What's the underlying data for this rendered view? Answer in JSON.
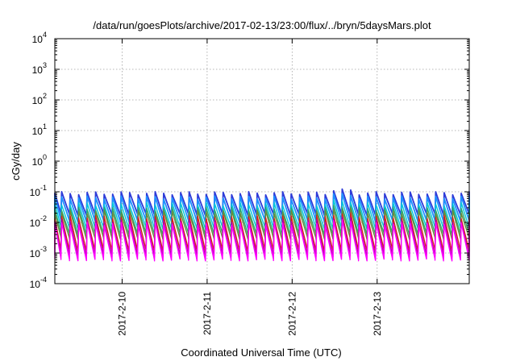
{
  "chart_data": {
    "type": "line",
    "title": "/data/run/goesPlots/archive/2017-02-13/23:00/flux/../bryn/5daysMars.plot",
    "xlabel": "Coordinated Universal Time (UTC)",
    "ylabel": "cGy/day",
    "yscale": "log",
    "ylim": [
      0.0001,
      10000
    ],
    "xlim": [
      "2017-02-09 05:00",
      "2017-02-14 02:00"
    ],
    "grid": true,
    "legend": "none",
    "y_ticks": [
      {
        "value": 0.0001,
        "base": "10",
        "exp": "-4"
      },
      {
        "value": 0.001,
        "base": "10",
        "exp": "-3"
      },
      {
        "value": 0.01,
        "base": "10",
        "exp": "-2"
      },
      {
        "value": 0.1,
        "base": "10",
        "exp": "-1"
      },
      {
        "value": 1,
        "base": "10",
        "exp": "0"
      },
      {
        "value": 10,
        "base": "10",
        "exp": "1"
      },
      {
        "value": 100,
        "base": "10",
        "exp": "2"
      },
      {
        "value": 1000,
        "base": "10",
        "exp": "3"
      },
      {
        "value": 10000,
        "base": "10",
        "exp": "4"
      }
    ],
    "x_ticks": [
      {
        "value": "2017-02-10 00:00",
        "label": "2017-2-10"
      },
      {
        "value": "2017-02-11 00:00",
        "label": "2017-2-11"
      },
      {
        "value": "2017-02-12 00:00",
        "label": "2017-2-12"
      },
      {
        "value": "2017-02-13 00:00",
        "label": "2017-2-13"
      }
    ],
    "cycle_hours": 2.4,
    "series": [
      {
        "color": "#2e3bd8",
        "peak": 0.09,
        "trough": 0.018
      },
      {
        "color": "#1e90ff",
        "peak": 0.065,
        "trough": 0.011
      },
      {
        "color": "#00c8d8",
        "peak": 0.04,
        "trough": 0.0065
      },
      {
        "color": "#2aa872",
        "peak": 0.028,
        "trough": 0.0042
      },
      {
        "color": "#6a8a3a",
        "peak": 0.022,
        "trough": 0.003
      },
      {
        "color": "#d81e1e",
        "peak": 0.015,
        "trough": 0.0012
      },
      {
        "color": "#b000b0",
        "peak": 0.011,
        "trough": 0.0008
      },
      {
        "color": "#ff00ff",
        "peak": 0.009,
        "trough": 0.0006
      }
    ]
  }
}
